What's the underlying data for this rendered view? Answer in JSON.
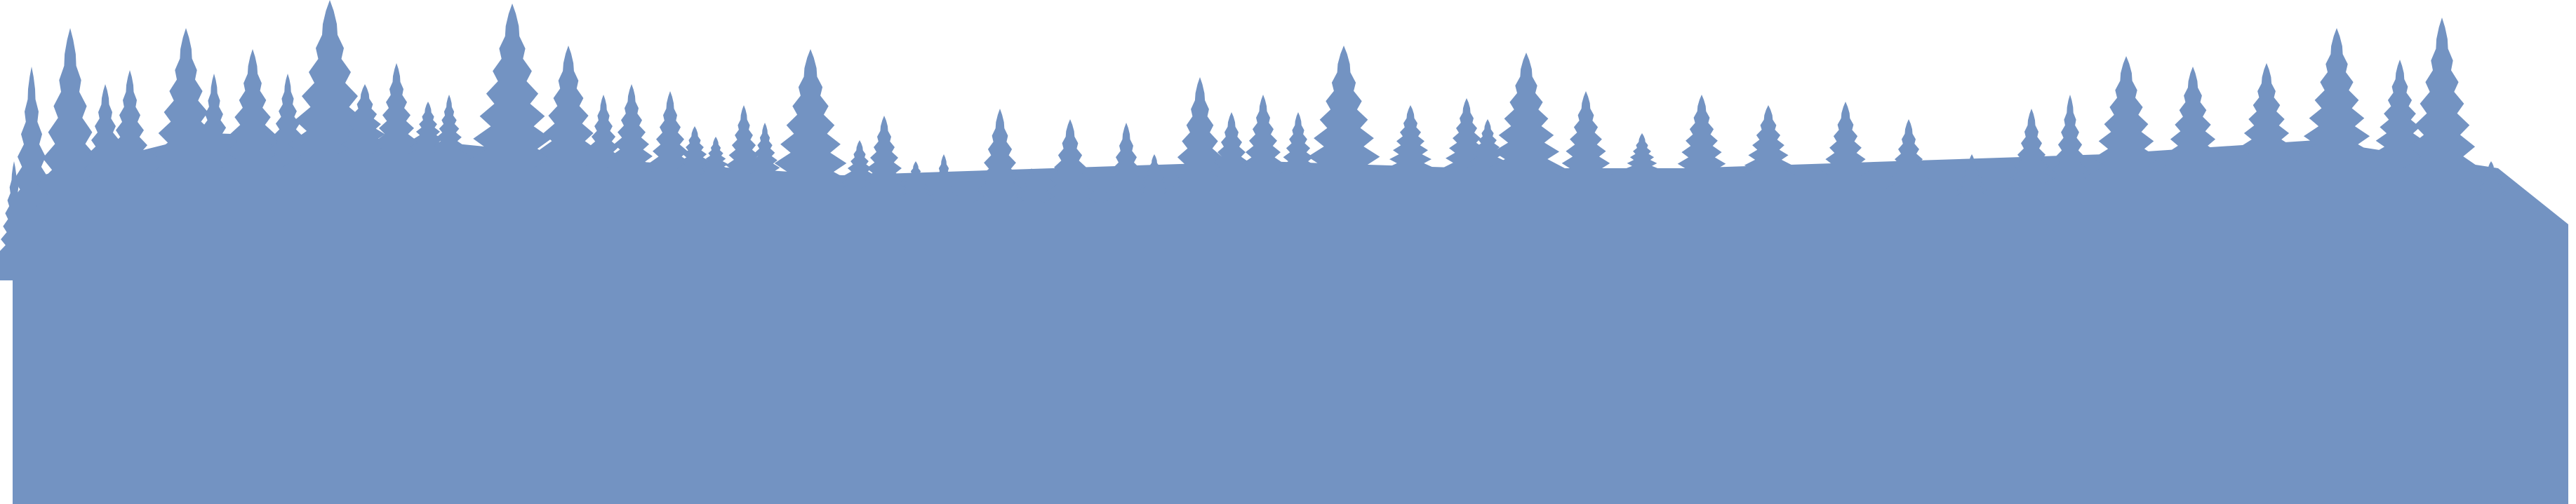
{
  "colors": {
    "background": "#ffffff",
    "silhouette": "#7393c2"
  }
}
